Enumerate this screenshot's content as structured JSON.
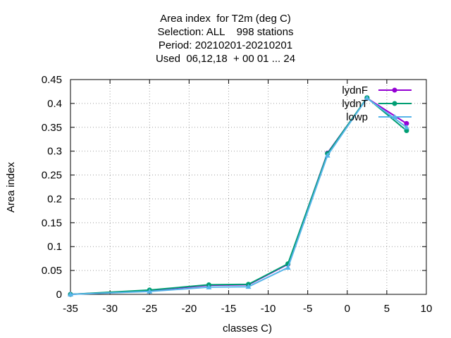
{
  "chart_data": {
    "type": "line",
    "title_lines": [
      "Area index  for T2m (deg C)",
      "Selection: ALL    998 stations",
      "Period: 20210201-20210201",
      "Used  06,12,18  + 00 01 ... 24"
    ],
    "xlabel": "classes C)",
    "ylabel": "Area index",
    "xlim": [
      -35,
      10
    ],
    "ylim": [
      0,
      0.45
    ],
    "xticks": [
      -35,
      -30,
      -25,
      -20,
      -15,
      -10,
      -5,
      0,
      5,
      10
    ],
    "yticks": [
      0,
      0.05,
      0.1,
      0.15,
      0.2,
      0.25,
      0.3,
      0.35,
      0.4,
      0.45
    ],
    "grid": true,
    "legend_position": "top-right",
    "series": [
      {
        "name": "lydnF",
        "color": "#9400d3",
        "marker": "circle",
        "x": [
          -35,
          -25,
          -17.5,
          -12.5,
          -7.5,
          -2.5,
          2.5,
          7.5
        ],
        "y": [
          0,
          0.008,
          0.019,
          0.02,
          0.063,
          0.296,
          0.411,
          0.358
        ]
      },
      {
        "name": "lydnT",
        "color": "#009e73",
        "marker": "circle",
        "x": [
          -35,
          -25,
          -17.5,
          -12.5,
          -7.5,
          -2.5,
          2.5,
          7.5
        ],
        "y": [
          0,
          0.009,
          0.02,
          0.021,
          0.064,
          0.295,
          0.412,
          0.343
        ]
      },
      {
        "name": "lowp",
        "color": "#56b4e9",
        "marker": "triangle",
        "x": [
          -35,
          -25,
          -17.5,
          -12.5,
          -7.5,
          -2.5,
          2.5,
          7.5
        ],
        "y": [
          0,
          0.006,
          0.015,
          0.016,
          0.056,
          0.291,
          0.411,
          0.35
        ]
      }
    ]
  }
}
